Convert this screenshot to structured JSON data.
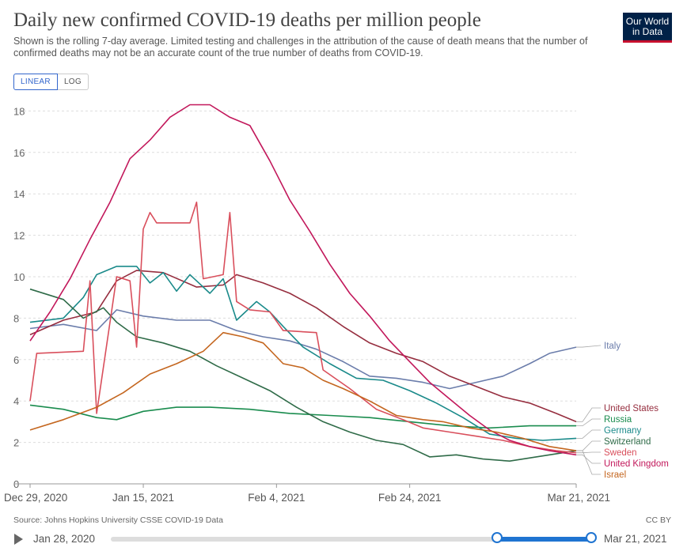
{
  "header": {
    "title": "Daily new confirmed COVID-19 deaths per million people",
    "subtitle": "Shown is the rolling 7-day average. Limited testing and challenges in the attribution of the cause of death means that the number of confirmed deaths may not be an accurate count of the true number of deaths from COVID-19.",
    "logo_line1": "Our World",
    "logo_line2": "in Data"
  },
  "controls": {
    "linear_label": "LINEAR",
    "log_label": "LOG",
    "active_scale": "linear"
  },
  "footer": {
    "source": "Source: Johns Hopkins University CSSE COVID-19 Data",
    "license": "CC BY"
  },
  "timeline": {
    "start_label": "Jan 28, 2020",
    "end_label": "Mar 21, 2021"
  },
  "colors": {
    "Italy": "#6b7dab",
    "United States": "#962e3f",
    "Russia": "#1a8c4e",
    "Germany": "#1a8a8a",
    "Switzerland": "#2f6b48",
    "Sweden": "#d94f5c",
    "United Kingdom": "#c2185b",
    "Israel": "#c4661f"
  },
  "chart_data": {
    "type": "line",
    "title": "Daily new confirmed COVID-19 deaths per million people",
    "xlabel": "",
    "ylabel": "",
    "x_range": [
      "2020-12-29",
      "2021-03-21"
    ],
    "x_ticks": [
      {
        "date": "2020-12-29",
        "label": "Dec 29, 2020"
      },
      {
        "date": "2021-01-15",
        "label": "Jan 15, 2021"
      },
      {
        "date": "2021-02-04",
        "label": "Feb 4, 2021"
      },
      {
        "date": "2021-02-24",
        "label": "Feb 24, 2021"
      },
      {
        "date": "2021-03-21",
        "label": "Mar 21, 2021"
      }
    ],
    "ylim": [
      0,
      18.5
    ],
    "y_ticks": [
      0,
      2,
      4,
      6,
      8,
      10,
      12,
      14,
      16,
      18
    ],
    "grid": true,
    "legend": "right-end labels",
    "series": [
      {
        "name": "Italy",
        "points": [
          [
            "2020-12-29",
            7.5
          ],
          [
            "2021-01-03",
            7.7
          ],
          [
            "2021-01-08",
            7.4
          ],
          [
            "2021-01-11",
            8.4
          ],
          [
            "2021-01-15",
            8.1
          ],
          [
            "2021-01-20",
            7.9
          ],
          [
            "2021-01-25",
            7.9
          ],
          [
            "2021-01-29",
            7.4
          ],
          [
            "2021-02-02",
            7.1
          ],
          [
            "2021-02-06",
            6.9
          ],
          [
            "2021-02-10",
            6.5
          ],
          [
            "2021-02-14",
            5.9
          ],
          [
            "2021-02-18",
            5.2
          ],
          [
            "2021-02-22",
            5.1
          ],
          [
            "2021-02-26",
            4.9
          ],
          [
            "2021-03-02",
            4.6
          ],
          [
            "2021-03-06",
            4.9
          ],
          [
            "2021-03-10",
            5.2
          ],
          [
            "2021-03-14",
            5.8
          ],
          [
            "2021-03-17",
            6.3
          ],
          [
            "2021-03-21",
            6.6
          ]
        ]
      },
      {
        "name": "United States",
        "points": [
          [
            "2020-12-29",
            7.2
          ],
          [
            "2021-01-03",
            7.9
          ],
          [
            "2021-01-08",
            8.3
          ],
          [
            "2021-01-11",
            9.8
          ],
          [
            "2021-01-14",
            10.3
          ],
          [
            "2021-01-18",
            10.2
          ],
          [
            "2021-01-23",
            9.5
          ],
          [
            "2021-01-27",
            9.6
          ],
          [
            "2021-01-29",
            10.1
          ],
          [
            "2021-02-02",
            9.7
          ],
          [
            "2021-02-06",
            9.2
          ],
          [
            "2021-02-10",
            8.5
          ],
          [
            "2021-02-14",
            7.6
          ],
          [
            "2021-02-18",
            6.8
          ],
          [
            "2021-02-22",
            6.3
          ],
          [
            "2021-02-26",
            5.9
          ],
          [
            "2021-03-02",
            5.2
          ],
          [
            "2021-03-06",
            4.7
          ],
          [
            "2021-03-10",
            4.2
          ],
          [
            "2021-03-14",
            3.9
          ],
          [
            "2021-03-18",
            3.4
          ],
          [
            "2021-03-21",
            3.0
          ]
        ]
      },
      {
        "name": "Russia",
        "points": [
          [
            "2020-12-29",
            3.8
          ],
          [
            "2021-01-03",
            3.6
          ],
          [
            "2021-01-08",
            3.2
          ],
          [
            "2021-01-11",
            3.1
          ],
          [
            "2021-01-15",
            3.5
          ],
          [
            "2021-01-20",
            3.7
          ],
          [
            "2021-01-25",
            3.7
          ],
          [
            "2021-01-31",
            3.6
          ],
          [
            "2021-02-06",
            3.4
          ],
          [
            "2021-02-12",
            3.3
          ],
          [
            "2021-02-18",
            3.2
          ],
          [
            "2021-02-24",
            3.0
          ],
          [
            "2021-03-02",
            2.8
          ],
          [
            "2021-03-08",
            2.7
          ],
          [
            "2021-03-14",
            2.8
          ],
          [
            "2021-03-21",
            2.8
          ]
        ]
      },
      {
        "name": "Germany",
        "points": [
          [
            "2020-12-29",
            7.8
          ],
          [
            "2021-01-03",
            8.0
          ],
          [
            "2021-01-06",
            9.0
          ],
          [
            "2021-01-08",
            10.1
          ],
          [
            "2021-01-11",
            10.5
          ],
          [
            "2021-01-14",
            10.5
          ],
          [
            "2021-01-16",
            9.7
          ],
          [
            "2021-01-18",
            10.2
          ],
          [
            "2021-01-20",
            9.3
          ],
          [
            "2021-01-22",
            10.1
          ],
          [
            "2021-01-25",
            9.2
          ],
          [
            "2021-01-27",
            9.9
          ],
          [
            "2021-01-29",
            7.9
          ],
          [
            "2021-02-01",
            8.8
          ],
          [
            "2021-02-03",
            8.3
          ],
          [
            "2021-02-05",
            7.6
          ],
          [
            "2021-02-08",
            6.6
          ],
          [
            "2021-02-12",
            5.8
          ],
          [
            "2021-02-16",
            5.1
          ],
          [
            "2021-02-20",
            5.0
          ],
          [
            "2021-02-24",
            4.5
          ],
          [
            "2021-02-28",
            3.9
          ],
          [
            "2021-03-04",
            3.2
          ],
          [
            "2021-03-08",
            2.4
          ],
          [
            "2021-03-12",
            2.2
          ],
          [
            "2021-03-16",
            2.1
          ],
          [
            "2021-03-21",
            2.2
          ]
        ]
      },
      {
        "name": "Switzerland",
        "points": [
          [
            "2020-12-29",
            9.4
          ],
          [
            "2021-01-03",
            8.9
          ],
          [
            "2021-01-06",
            8.0
          ],
          [
            "2021-01-09",
            8.5
          ],
          [
            "2021-01-11",
            7.8
          ],
          [
            "2021-01-14",
            7.1
          ],
          [
            "2021-01-18",
            6.8
          ],
          [
            "2021-01-22",
            6.4
          ],
          [
            "2021-01-26",
            5.7
          ],
          [
            "2021-01-30",
            5.1
          ],
          [
            "2021-02-03",
            4.5
          ],
          [
            "2021-02-07",
            3.7
          ],
          [
            "2021-02-11",
            3.0
          ],
          [
            "2021-02-15",
            2.5
          ],
          [
            "2021-02-19",
            2.1
          ],
          [
            "2021-02-23",
            1.9
          ],
          [
            "2021-02-27",
            1.3
          ],
          [
            "2021-03-03",
            1.4
          ],
          [
            "2021-03-07",
            1.2
          ],
          [
            "2021-03-11",
            1.1
          ],
          [
            "2021-03-15",
            1.3
          ],
          [
            "2021-03-21",
            1.6
          ]
        ]
      },
      {
        "name": "Sweden",
        "points": [
          [
            "2020-12-29",
            4.0
          ],
          [
            "2020-12-30",
            6.3
          ],
          [
            "2021-01-06",
            6.4
          ],
          [
            "2021-01-07",
            9.8
          ],
          [
            "2021-01-08",
            3.4
          ],
          [
            "2021-01-11",
            10.0
          ],
          [
            "2021-01-13",
            9.8
          ],
          [
            "2021-01-14",
            6.6
          ],
          [
            "2021-01-15",
            12.3
          ],
          [
            "2021-01-16",
            13.1
          ],
          [
            "2021-01-17",
            12.6
          ],
          [
            "2021-01-22",
            12.6
          ],
          [
            "2021-01-23",
            13.6
          ],
          [
            "2021-01-24",
            9.9
          ],
          [
            "2021-01-27",
            10.1
          ],
          [
            "2021-01-28",
            13.1
          ],
          [
            "2021-01-29",
            8.8
          ],
          [
            "2021-01-31",
            8.4
          ],
          [
            "2021-02-03",
            8.3
          ],
          [
            "2021-02-05",
            7.4
          ],
          [
            "2021-02-10",
            7.3
          ],
          [
            "2021-02-11",
            5.5
          ],
          [
            "2021-02-15",
            4.6
          ],
          [
            "2021-02-19",
            3.6
          ],
          [
            "2021-02-23",
            3.1
          ],
          [
            "2021-02-26",
            2.7
          ],
          [
            "2021-03-02",
            2.5
          ],
          [
            "2021-03-06",
            2.3
          ],
          [
            "2021-03-10",
            2.1
          ],
          [
            "2021-03-14",
            1.8
          ],
          [
            "2021-03-18",
            1.6
          ],
          [
            "2021-03-21",
            1.5
          ]
        ]
      },
      {
        "name": "United Kingdom",
        "points": [
          [
            "2020-12-29",
            6.9
          ],
          [
            "2021-01-01",
            8.3
          ],
          [
            "2021-01-04",
            9.9
          ],
          [
            "2021-01-07",
            11.8
          ],
          [
            "2021-01-10",
            13.6
          ],
          [
            "2021-01-13",
            15.7
          ],
          [
            "2021-01-16",
            16.6
          ],
          [
            "2021-01-19",
            17.7
          ],
          [
            "2021-01-22",
            18.3
          ],
          [
            "2021-01-25",
            18.3
          ],
          [
            "2021-01-28",
            17.7
          ],
          [
            "2021-01-31",
            17.3
          ],
          [
            "2021-02-03",
            15.6
          ],
          [
            "2021-02-06",
            13.7
          ],
          [
            "2021-02-09",
            12.2
          ],
          [
            "2021-02-12",
            10.6
          ],
          [
            "2021-02-15",
            9.2
          ],
          [
            "2021-02-18",
            8.1
          ],
          [
            "2021-02-21",
            6.9
          ],
          [
            "2021-02-24",
            5.9
          ],
          [
            "2021-02-27",
            4.9
          ],
          [
            "2021-03-02",
            4.1
          ],
          [
            "2021-03-05",
            3.3
          ],
          [
            "2021-03-08",
            2.6
          ],
          [
            "2021-03-11",
            2.1
          ],
          [
            "2021-03-14",
            1.8
          ],
          [
            "2021-03-17",
            1.6
          ],
          [
            "2021-03-21",
            1.4
          ]
        ]
      },
      {
        "name": "Israel",
        "points": [
          [
            "2020-12-29",
            2.6
          ],
          [
            "2021-01-03",
            3.1
          ],
          [
            "2021-01-08",
            3.7
          ],
          [
            "2021-01-12",
            4.4
          ],
          [
            "2021-01-16",
            5.3
          ],
          [
            "2021-01-20",
            5.8
          ],
          [
            "2021-01-24",
            6.4
          ],
          [
            "2021-01-27",
            7.3
          ],
          [
            "2021-01-30",
            7.1
          ],
          [
            "2021-02-02",
            6.8
          ],
          [
            "2021-02-05",
            5.8
          ],
          [
            "2021-02-08",
            5.6
          ],
          [
            "2021-02-11",
            5.0
          ],
          [
            "2021-02-14",
            4.6
          ],
          [
            "2021-02-18",
            4.0
          ],
          [
            "2021-02-22",
            3.3
          ],
          [
            "2021-02-26",
            3.1
          ],
          [
            "2021-03-01",
            3.0
          ],
          [
            "2021-03-05",
            2.7
          ],
          [
            "2021-03-09",
            2.5
          ],
          [
            "2021-03-13",
            2.2
          ],
          [
            "2021-03-17",
            1.8
          ],
          [
            "2021-03-21",
            1.6
          ]
        ]
      }
    ]
  }
}
